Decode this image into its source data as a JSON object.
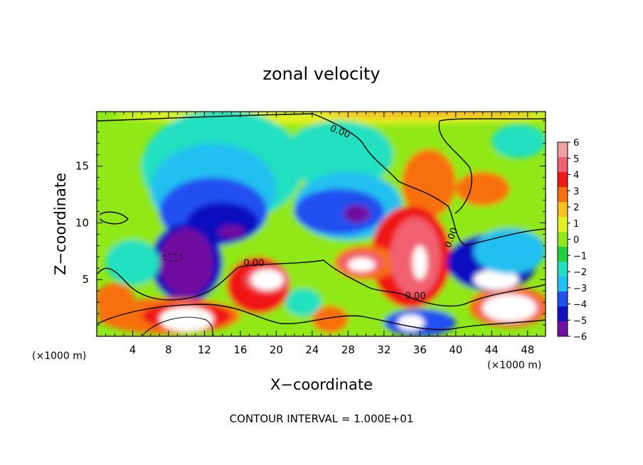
{
  "chart_data": {
    "type": "heatmap",
    "title": "zonal velocity",
    "xlabel": "X−coordinate",
    "ylabel": "Z−coordinate",
    "x_unit_left": "(×1000 m)",
    "x_unit_right": "(×1000 m)",
    "footer": "CONTOUR INTERVAL = 1.000E+01",
    "xlim": [
      0,
      50
    ],
    "ylim": [
      0,
      19.8
    ],
    "x_ticks": [
      4,
      8,
      12,
      16,
      20,
      24,
      28,
      32,
      36,
      40,
      44,
      48
    ],
    "y_ticks": [
      5,
      10,
      15
    ],
    "colorbar": {
      "min": -6,
      "max": 6,
      "labels": [
        "6",
        "5",
        "4",
        "3",
        "2",
        "1",
        "0",
        "−1",
        "−2",
        "−3",
        "−4",
        "−5",
        "−6"
      ],
      "colors": [
        "#f0a0a0",
        "#f06070",
        "#f01818",
        "#f87010",
        "#f8c020",
        "#e0f020",
        "#90e818",
        "#20d040",
        "#20e0c0",
        "#20c0f0",
        "#2050f0",
        "#1010c0",
        "#7010a0"
      ]
    },
    "contour_labels": [
      {
        "text": "0.00",
        "x": 27,
        "y": 17.8,
        "rotate": 22
      },
      {
        "text": "0.00",
        "x": 17.5,
        "y": 6.2,
        "rotate": 0
      },
      {
        "text": "0.00",
        "x": 35.5,
        "y": 3.3,
        "rotate": 0
      },
      {
        "text": "0.00",
        "x": 39.8,
        "y": 8.6,
        "rotate": -70
      }
    ],
    "regions": [
      {
        "v": 0.3,
        "x": 25,
        "y": 10,
        "rx": 25,
        "ry": 10
      },
      {
        "v": 1.2,
        "x": 27,
        "y": 19.4,
        "rx": 25,
        "ry": 0.7
      },
      {
        "v": 2.2,
        "x": 37,
        "y": 19.6,
        "rx": 12,
        "ry": 0.4
      },
      {
        "v": -2,
        "x": 14,
        "y": 15,
        "rx": 9,
        "ry": 5
      },
      {
        "v": -2,
        "x": 27,
        "y": 16,
        "rx": 6,
        "ry": 3
      },
      {
        "v": -3,
        "x": 13,
        "y": 13,
        "rx": 7,
        "ry": 4
      },
      {
        "v": -3,
        "x": 28,
        "y": 11.5,
        "rx": 6,
        "ry": 3
      },
      {
        "v": -4,
        "x": 13,
        "y": 11,
        "rx": 6,
        "ry": 3
      },
      {
        "v": -4,
        "x": 27,
        "y": 11,
        "rx": 5,
        "ry": 2
      },
      {
        "v": -5,
        "x": 14,
        "y": 10,
        "rx": 4,
        "ry": 1.8
      },
      {
        "v": -5,
        "x": 10,
        "y": 6.5,
        "rx": 4,
        "ry": 3.5
      },
      {
        "v": -6,
        "x": 29,
        "y": 10.8,
        "rx": 1.5,
        "ry": 0.8
      },
      {
        "v": -6,
        "x": 15,
        "y": 9.2,
        "rx": 1.5,
        "ry": 0.6
      },
      {
        "v": -7,
        "x": 10,
        "y": 6.5,
        "rx": 3,
        "ry": 3
      },
      {
        "v": 3.5,
        "x": 37,
        "y": 13.5,
        "rx": 3,
        "ry": 3
      },
      {
        "v": 3,
        "x": 43,
        "y": 13,
        "rx": 3,
        "ry": 1.5
      },
      {
        "v": 4,
        "x": 35,
        "y": 7,
        "rx": 4.5,
        "ry": 4.5
      },
      {
        "v": 3,
        "x": 30,
        "y": 6.5,
        "rx": 3.5,
        "ry": 1.5
      },
      {
        "v": 5,
        "x": 35.5,
        "y": 7,
        "rx": 2.8,
        "ry": 3.5
      },
      {
        "v": 5,
        "x": 29.5,
        "y": 6.5,
        "rx": 2.5,
        "ry": 1
      },
      {
        "v": 7,
        "x": 29.5,
        "y": 6.3,
        "rx": 1.5,
        "ry": 0.6
      },
      {
        "v": 7,
        "x": 36,
        "y": 6.5,
        "rx": 0.8,
        "ry": 1.5
      },
      {
        "v": 4,
        "x": 18,
        "y": 4.5,
        "rx": 3.5,
        "ry": 2.5
      },
      {
        "v": 5,
        "x": 19,
        "y": 5,
        "rx": 2.5,
        "ry": 1.2
      },
      {
        "v": 7,
        "x": 19,
        "y": 5,
        "rx": 1.8,
        "ry": 0.9
      },
      {
        "v": 3,
        "x": 8,
        "y": 1.8,
        "rx": 8,
        "ry": 1.6
      },
      {
        "v": 4.5,
        "x": 10,
        "y": 1.8,
        "rx": 5,
        "ry": 1.2
      },
      {
        "v": 7,
        "x": 10,
        "y": 1.5,
        "rx": 3,
        "ry": 1.1
      },
      {
        "v": 3,
        "x": 46,
        "y": 2.6,
        "rx": 4.5,
        "ry": 1.8
      },
      {
        "v": 5,
        "x": 46,
        "y": 2.5,
        "rx": 3.5,
        "ry": 1.4
      },
      {
        "v": 7,
        "x": 46,
        "y": 2.5,
        "rx": 3,
        "ry": 1.2
      },
      {
        "v": 3,
        "x": 26,
        "y": 1.5,
        "rx": 2,
        "ry": 1.2
      },
      {
        "v": 3,
        "x": 2,
        "y": 3.2,
        "rx": 2.2,
        "ry": 1.5
      },
      {
        "v": -4,
        "x": 36,
        "y": 1.2,
        "rx": 4,
        "ry": 1.2
      },
      {
        "v": 7,
        "x": 35,
        "y": 1.2,
        "rx": 1.5,
        "ry": 0.7
      },
      {
        "v": -5,
        "x": 44,
        "y": 6.5,
        "rx": 5,
        "ry": 2.5
      },
      {
        "v": 7,
        "x": 44.5,
        "y": 5,
        "rx": 2.5,
        "ry": 0.9
      },
      {
        "v": 7,
        "x": 46,
        "y": 6.2,
        "rx": 1,
        "ry": 0.6
      },
      {
        "v": -3,
        "x": 46,
        "y": 7.5,
        "rx": 4,
        "ry": 2
      },
      {
        "v": -1.5,
        "x": 4,
        "y": 6.5,
        "rx": 3,
        "ry": 2
      },
      {
        "v": -2,
        "x": 23,
        "y": 3,
        "rx": 2,
        "ry": 1.2
      },
      {
        "v": -1.5,
        "x": 47,
        "y": 17.2,
        "rx": 3,
        "ry": 1.5
      }
    ]
  }
}
